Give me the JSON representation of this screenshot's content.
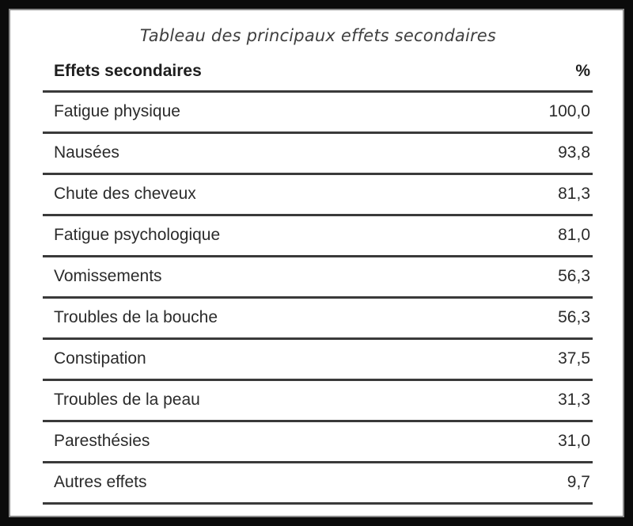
{
  "title": "Tableau des principaux effets secondaires",
  "table": {
    "header": {
      "label": "Effets secondaires",
      "value": "%"
    },
    "rows": [
      {
        "label": "Fatigue physique",
        "value": "100,0"
      },
      {
        "label": "Nausées",
        "value": "93,8"
      },
      {
        "label": "Chute des cheveux",
        "value": "81,3"
      },
      {
        "label": "Fatigue psychologique",
        "value": "81,0"
      },
      {
        "label": "Vomissements",
        "value": "56,3"
      },
      {
        "label": "Troubles de la bouche",
        "value": "56,3"
      },
      {
        "label": "Constipation",
        "value": "37,5"
      },
      {
        "label": "Troubles de la peau",
        "value": "31,3"
      },
      {
        "label": "Paresthésies",
        "value": "31,0"
      },
      {
        "label": "Autres effets",
        "value": "9,7"
      }
    ]
  }
}
